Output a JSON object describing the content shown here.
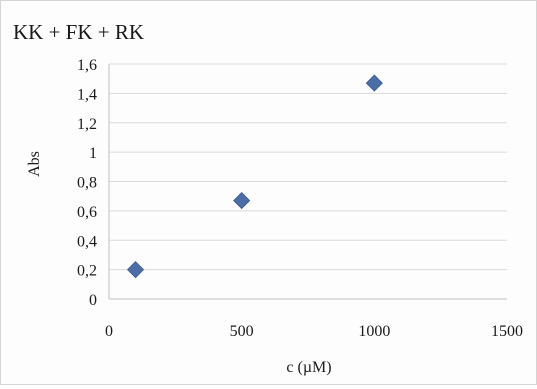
{
  "chart_data": {
    "type": "scatter",
    "title": "KK + FK + RK",
    "xlabel": "c (µM)",
    "ylabel": "Abs",
    "xlim": [
      0,
      1500
    ],
    "ylim": [
      0,
      1.6
    ],
    "x_ticks": [
      0,
      500,
      1000,
      1500
    ],
    "x_tick_labels": [
      "0",
      "500",
      "1000",
      "1500"
    ],
    "y_ticks": [
      0,
      0.2,
      0.4,
      0.6,
      0.8,
      1,
      1.2,
      1.4,
      1.6
    ],
    "y_tick_labels": [
      "0",
      "0,2",
      "0,4",
      "0,6",
      "0,8",
      "1",
      "1,2",
      "1,4",
      "1,6"
    ],
    "grid": "horizontal",
    "legend": "none",
    "marker": "diamond",
    "series": [
      {
        "color": "#4a6fa8",
        "points": [
          {
            "x": 100,
            "y": 0.2
          },
          {
            "x": 500,
            "y": 0.67
          },
          {
            "x": 1000,
            "y": 1.47
          }
        ]
      }
    ]
  }
}
